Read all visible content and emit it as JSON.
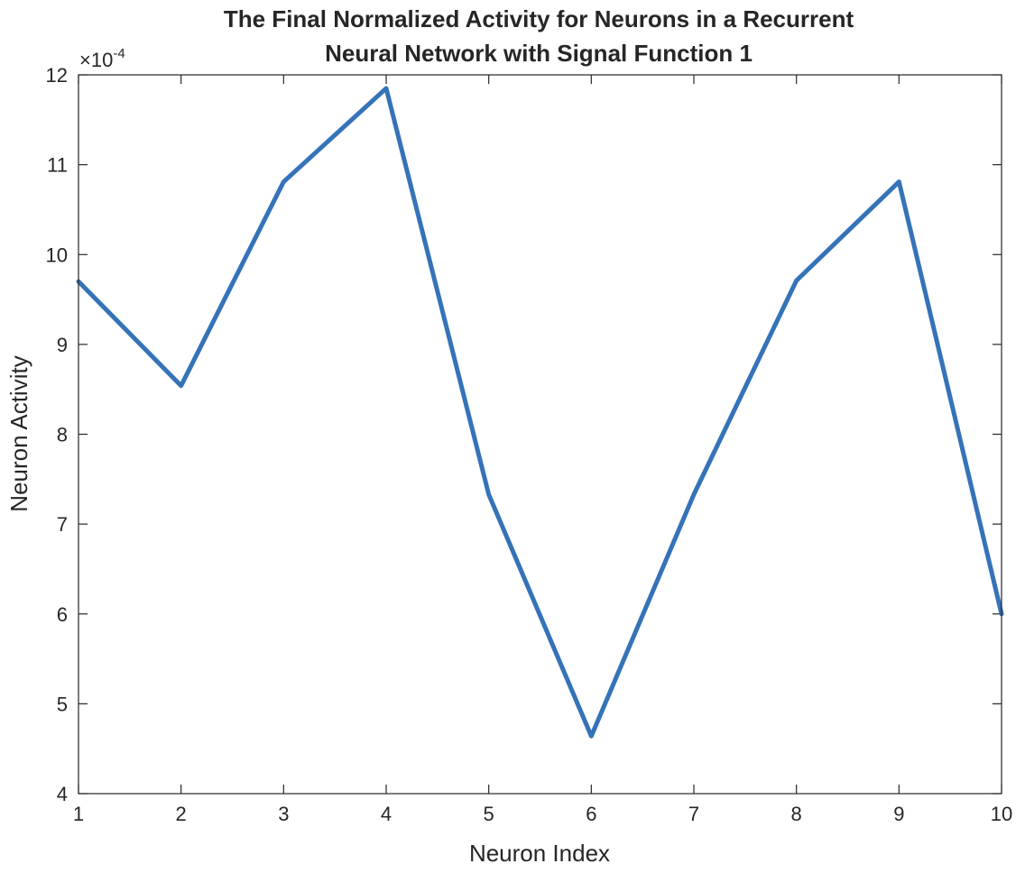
{
  "chart_data": {
    "type": "line",
    "title_line1": "The Final Normalized Activity for Neurons in a Recurrent",
    "title_line2": "Neural Network with Signal Function 1",
    "xlabel": "Neuron Index",
    "ylabel": "Neuron Activity",
    "y_multiplier_base": "×10",
    "y_multiplier_exponent": "-4",
    "xlim": [
      1,
      10
    ],
    "ylim": [
      4,
      12
    ],
    "xticks": [
      1,
      2,
      3,
      4,
      5,
      6,
      7,
      8,
      9,
      10
    ],
    "yticks": [
      4,
      5,
      6,
      7,
      8,
      9,
      10,
      11,
      12
    ],
    "grid": false,
    "line_color": "#3573b9",
    "series": [
      {
        "x": [
          1,
          2,
          3,
          4,
          5,
          6,
          7,
          8,
          9,
          10
        ],
        "values": [
          9.7,
          8.54,
          10.81,
          11.85,
          7.33,
          4.64,
          7.33,
          9.71,
          10.81,
          6.0
        ]
      }
    ]
  }
}
